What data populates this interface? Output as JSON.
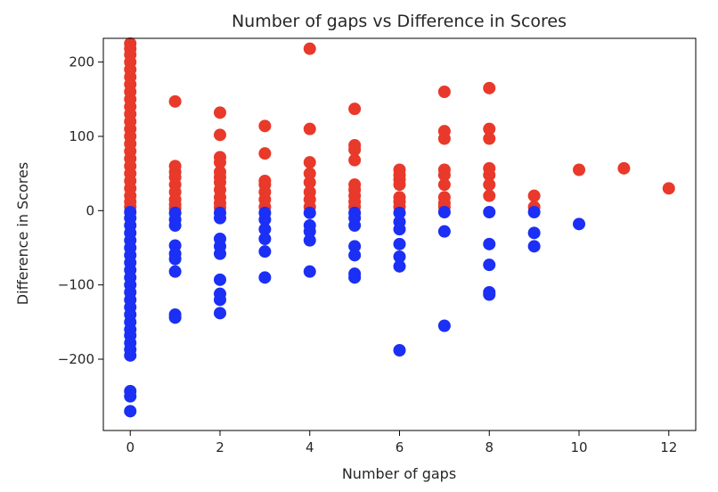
{
  "chart_data": {
    "type": "scatter",
    "title": "Number of gaps vs Difference in Scores",
    "xlabel": "Number of gaps",
    "ylabel": "Difference in Scores",
    "xlim": [
      -0.6,
      12.6
    ],
    "ylim": [
      -296,
      232
    ],
    "xticks": [
      0,
      2,
      4,
      6,
      8,
      10,
      12
    ],
    "yticks": [
      -200,
      -100,
      0,
      100,
      200
    ],
    "grid": false,
    "legend": "none",
    "colors": {
      "positive": "#e8392a",
      "negative": "#1b2ff5"
    },
    "series": [
      {
        "color": "#e8392a",
        "points": [
          [
            0,
            225
          ],
          [
            0,
            218
          ],
          [
            0,
            210
          ],
          [
            0,
            200
          ],
          [
            0,
            190
          ],
          [
            0,
            180
          ],
          [
            0,
            170
          ],
          [
            0,
            160
          ],
          [
            0,
            150
          ],
          [
            0,
            140
          ],
          [
            0,
            130
          ],
          [
            0,
            120
          ],
          [
            0,
            110
          ],
          [
            0,
            100
          ],
          [
            0,
            90
          ],
          [
            0,
            80
          ],
          [
            0,
            70
          ],
          [
            0,
            60
          ],
          [
            0,
            50
          ],
          [
            0,
            40
          ],
          [
            0,
            30
          ],
          [
            0,
            20
          ],
          [
            0,
            12
          ],
          [
            0,
            5
          ],
          [
            1,
            147
          ],
          [
            1,
            60
          ],
          [
            1,
            52
          ],
          [
            1,
            45
          ],
          [
            1,
            35
          ],
          [
            1,
            25
          ],
          [
            1,
            15
          ],
          [
            1,
            8
          ],
          [
            1,
            3
          ],
          [
            2,
            132
          ],
          [
            2,
            102
          ],
          [
            2,
            72
          ],
          [
            2,
            65
          ],
          [
            2,
            52
          ],
          [
            2,
            45
          ],
          [
            2,
            38
          ],
          [
            2,
            28
          ],
          [
            2,
            18
          ],
          [
            2,
            10
          ],
          [
            2,
            4
          ],
          [
            3,
            114
          ],
          [
            3,
            77
          ],
          [
            3,
            40
          ],
          [
            3,
            35
          ],
          [
            3,
            25
          ],
          [
            3,
            15
          ],
          [
            3,
            5
          ],
          [
            4,
            218
          ],
          [
            4,
            110
          ],
          [
            4,
            65
          ],
          [
            4,
            50
          ],
          [
            4,
            38
          ],
          [
            4,
            25
          ],
          [
            4,
            15
          ],
          [
            4,
            5
          ],
          [
            5,
            137
          ],
          [
            5,
            88
          ],
          [
            5,
            82
          ],
          [
            5,
            68
          ],
          [
            5,
            35
          ],
          [
            5,
            28
          ],
          [
            5,
            20
          ],
          [
            5,
            12
          ],
          [
            5,
            5
          ],
          [
            6,
            55
          ],
          [
            6,
            48
          ],
          [
            6,
            42
          ],
          [
            6,
            35
          ],
          [
            6,
            18
          ],
          [
            6,
            12
          ],
          [
            6,
            5
          ],
          [
            7,
            160
          ],
          [
            7,
            107
          ],
          [
            7,
            97
          ],
          [
            7,
            55
          ],
          [
            7,
            48
          ],
          [
            7,
            35
          ],
          [
            7,
            18
          ],
          [
            7,
            10
          ],
          [
            7,
            5
          ],
          [
            8,
            165
          ],
          [
            8,
            110
          ],
          [
            8,
            97
          ],
          [
            8,
            57
          ],
          [
            8,
            48
          ],
          [
            8,
            35
          ],
          [
            8,
            20
          ],
          [
            9,
            20
          ],
          [
            9,
            5
          ],
          [
            10,
            55
          ],
          [
            11,
            57
          ],
          [
            12,
            30
          ]
        ]
      },
      {
        "color": "#1b2ff5",
        "points": [
          [
            0,
            -2
          ],
          [
            0,
            -10
          ],
          [
            0,
            -20
          ],
          [
            0,
            -30
          ],
          [
            0,
            -40
          ],
          [
            0,
            -50
          ],
          [
            0,
            -60
          ],
          [
            0,
            -70
          ],
          [
            0,
            -80
          ],
          [
            0,
            -90
          ],
          [
            0,
            -100
          ],
          [
            0,
            -110
          ],
          [
            0,
            -120
          ],
          [
            0,
            -130
          ],
          [
            0,
            -140
          ],
          [
            0,
            -150
          ],
          [
            0,
            -160
          ],
          [
            0,
            -168
          ],
          [
            0,
            -178
          ],
          [
            0,
            -187
          ],
          [
            0,
            -195
          ],
          [
            0,
            -243
          ],
          [
            0,
            -250
          ],
          [
            0,
            -270
          ],
          [
            1,
            -3
          ],
          [
            1,
            -12
          ],
          [
            1,
            -20
          ],
          [
            1,
            -47
          ],
          [
            1,
            -58
          ],
          [
            1,
            -65
          ],
          [
            1,
            -82
          ],
          [
            1,
            -140
          ],
          [
            1,
            -144
          ],
          [
            2,
            -3
          ],
          [
            2,
            -10
          ],
          [
            2,
            -38
          ],
          [
            2,
            -48
          ],
          [
            2,
            -58
          ],
          [
            2,
            -93
          ],
          [
            2,
            -112
          ],
          [
            2,
            -120
          ],
          [
            2,
            -138
          ],
          [
            3,
            -3
          ],
          [
            3,
            -12
          ],
          [
            3,
            -25
          ],
          [
            3,
            -38
          ],
          [
            3,
            -55
          ],
          [
            3,
            -90
          ],
          [
            4,
            -3
          ],
          [
            4,
            -20
          ],
          [
            4,
            -28
          ],
          [
            4,
            -40
          ],
          [
            4,
            -82
          ],
          [
            5,
            -3
          ],
          [
            5,
            -10
          ],
          [
            5,
            -20
          ],
          [
            5,
            -48
          ],
          [
            5,
            -60
          ],
          [
            5,
            -85
          ],
          [
            5,
            -90
          ],
          [
            6,
            -3
          ],
          [
            6,
            -15
          ],
          [
            6,
            -25
          ],
          [
            6,
            -45
          ],
          [
            6,
            -62
          ],
          [
            6,
            -75
          ],
          [
            6,
            -188
          ],
          [
            7,
            -2
          ],
          [
            7,
            -28
          ],
          [
            7,
            -155
          ],
          [
            8,
            -2
          ],
          [
            8,
            -45
          ],
          [
            8,
            -73
          ],
          [
            8,
            -110
          ],
          [
            8,
            -113
          ],
          [
            9,
            -2
          ],
          [
            9,
            -30
          ],
          [
            9,
            -48
          ],
          [
            10,
            -18
          ]
        ]
      }
    ]
  }
}
